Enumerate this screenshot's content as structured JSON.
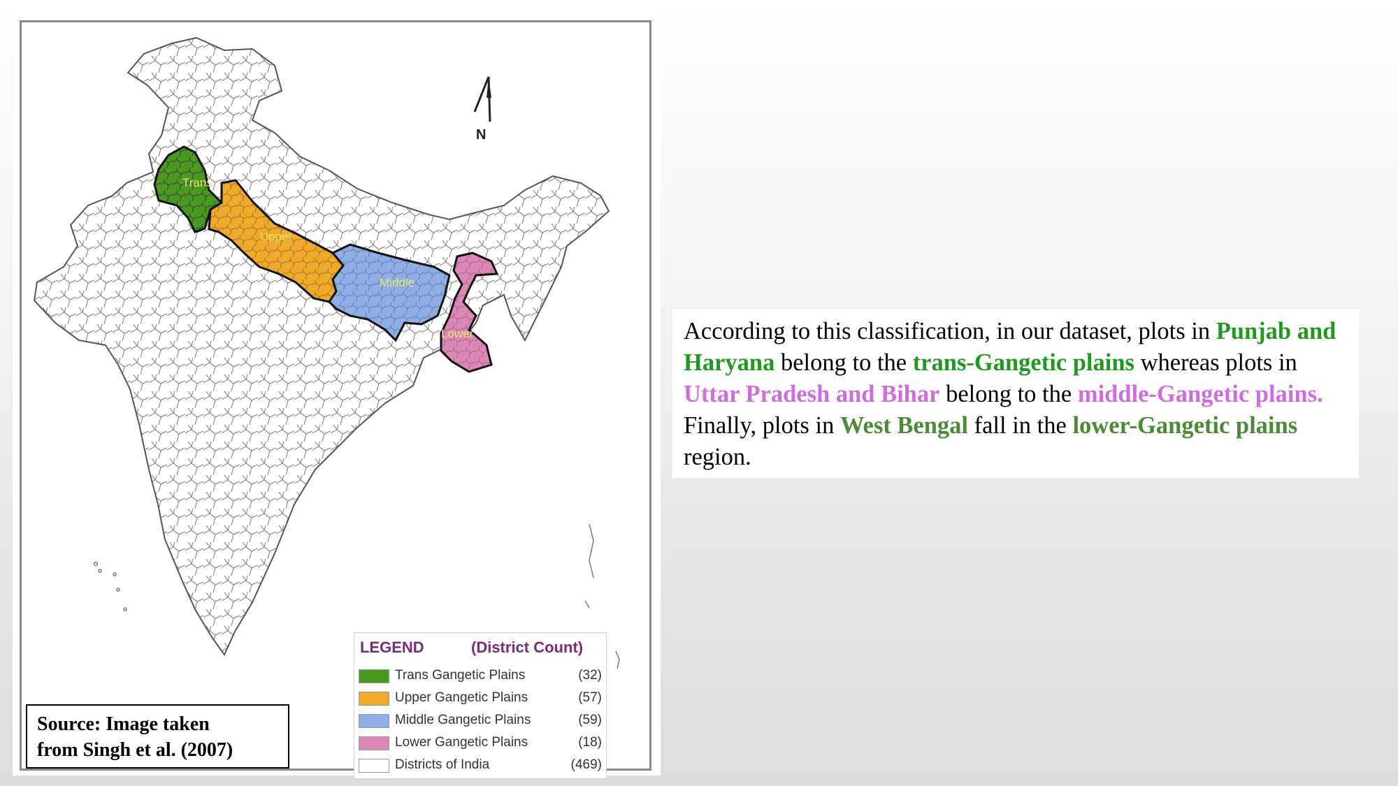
{
  "map": {
    "region_labels": {
      "trans": "Trans",
      "upper": "Upper",
      "middle": "Middle",
      "lower": "Lower"
    },
    "north_label": "N",
    "colors": {
      "trans": "#4a9a22",
      "upper": "#f0a928",
      "middle": "#8eaee8",
      "lower": "#dd86b8",
      "districts": "#ffffff"
    }
  },
  "legend": {
    "title": "LEGEND",
    "subtitle": "(District Count)",
    "items": [
      {
        "label": "Trans Gangetic Plains",
        "count": "(32)",
        "color": "#4a9a22"
      },
      {
        "label": "Upper Gangetic Plains",
        "count": "(57)",
        "color": "#f0a928"
      },
      {
        "label": "Middle Gangetic Plains",
        "count": "(59)",
        "color": "#8eaee8"
      },
      {
        "label": "Lower Gangetic Plains",
        "count": "(18)",
        "color": "#dd86b8"
      },
      {
        "label": "Districts of India",
        "count": "(469)",
        "color": "#ffffff"
      }
    ]
  },
  "source": {
    "line1": "Source: Image taken",
    "line2": "from Singh et al. (2007)"
  },
  "description": {
    "t1": "According to this classification, in our dataset, plots in ",
    "h1": "Punjab and Haryana",
    "t2": " belong to the ",
    "h2": "trans-Gangetic plains",
    "t3": " whereas plots in ",
    "h3": "Uttar Pradesh and Bihar",
    "t4": " belong to the ",
    "h4": "middle-Gangetic plains.",
    "t5": " Finally, plots in ",
    "h5": "West Bengal",
    "t6": " fall in the ",
    "h6": "lower-Gangetic plains",
    "t7": " region."
  }
}
